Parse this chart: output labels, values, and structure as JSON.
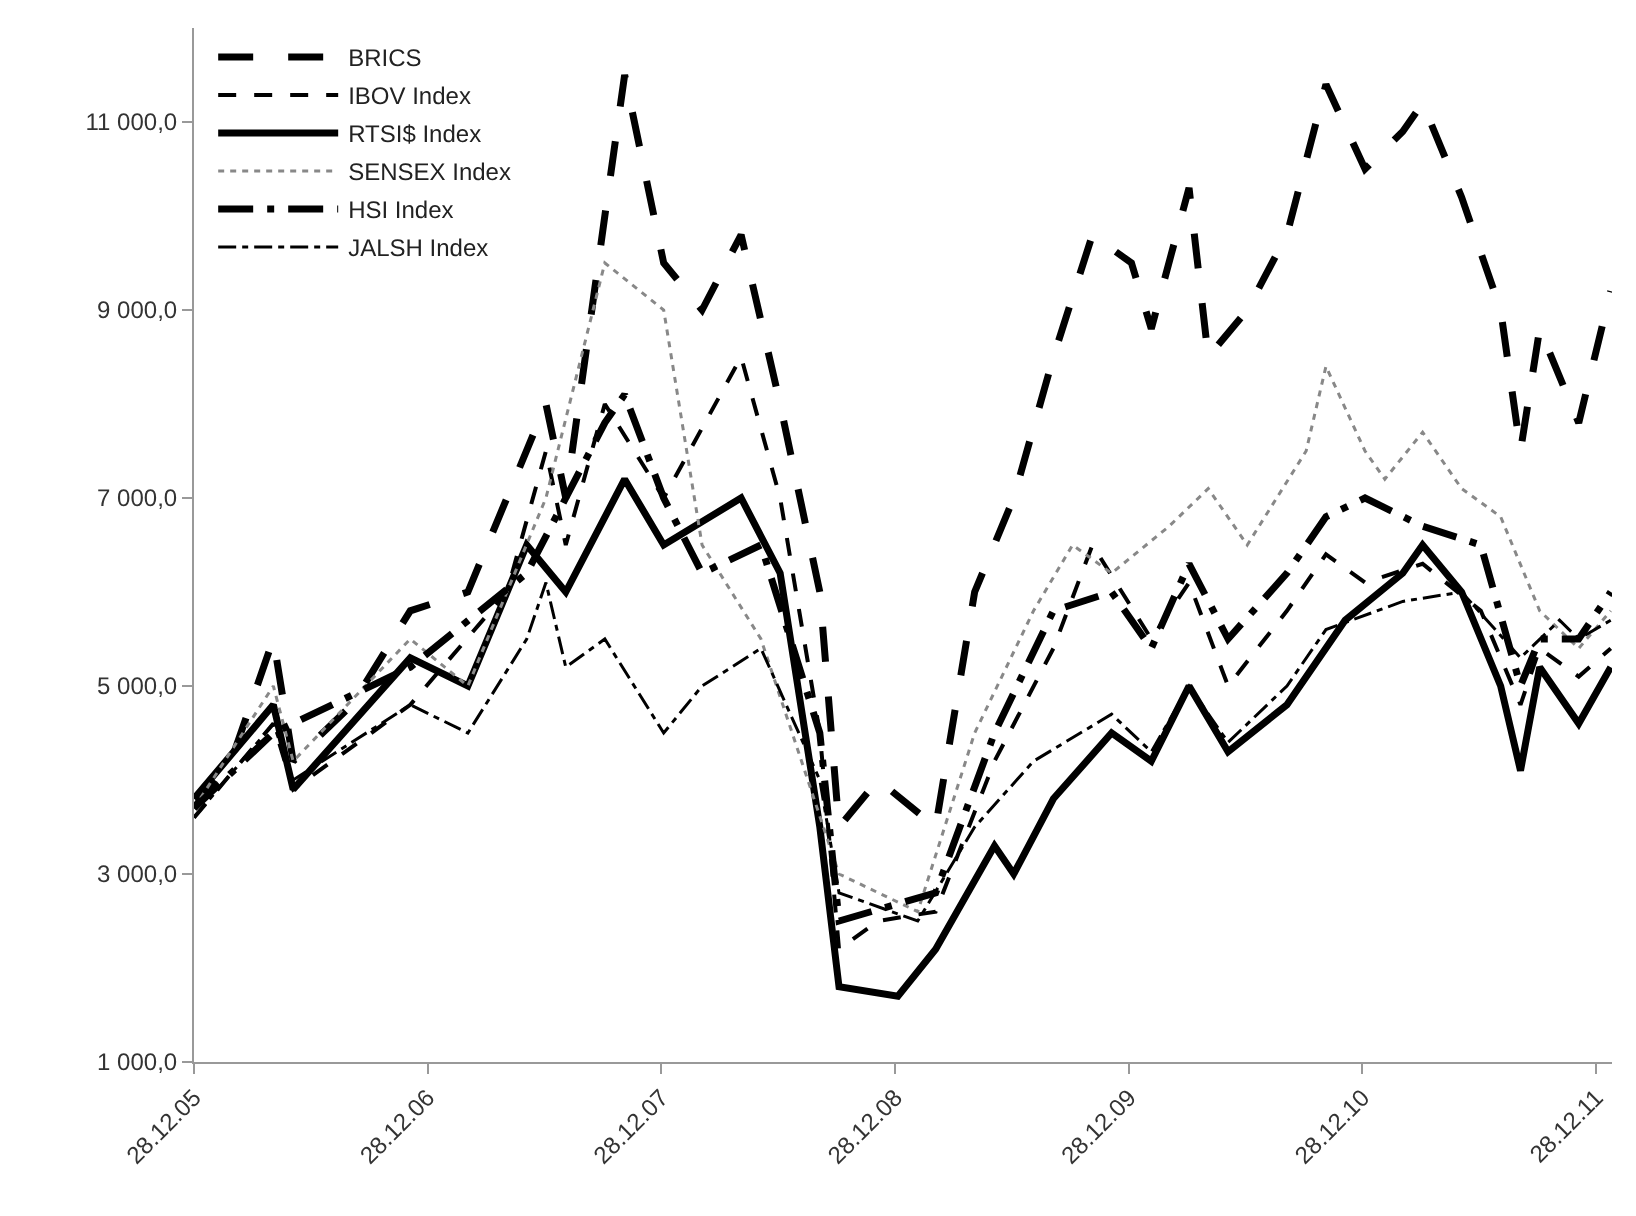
{
  "chart_data": {
    "type": "line",
    "xlim": [
      "2005-12-28",
      "2012-01-22"
    ],
    "ylim": [
      1000,
      12000
    ],
    "xticks": [
      {
        "value": "2005-12-28",
        "label": "28.12.05"
      },
      {
        "value": "2006-12-28",
        "label": "28.12.06"
      },
      {
        "value": "2007-12-28",
        "label": "28.12.07"
      },
      {
        "value": "2008-12-28",
        "label": "28.12.08"
      },
      {
        "value": "2009-12-28",
        "label": "28.12.09"
      },
      {
        "value": "2010-12-28",
        "label": "28.12.10"
      },
      {
        "value": "2011-12-28",
        "label": "28.12.11"
      }
    ],
    "yticks": [
      {
        "value": 1000,
        "label": "1 000,0"
      },
      {
        "value": 3000,
        "label": "3 000,0"
      },
      {
        "value": 5000,
        "label": "5 000,0"
      },
      {
        "value": 7000,
        "label": "7 000,0"
      },
      {
        "value": 9000,
        "label": "9 000,0"
      },
      {
        "value": 11000,
        "label": "11 000,0"
      }
    ],
    "legend": "top left",
    "marker": "none",
    "series": [
      {
        "name": "BRICS",
        "color": "#000000",
        "line_style": "longdash",
        "x": [
          "2005-12-28",
          "2006-03",
          "2006-05",
          "2006-06",
          "2006-09",
          "2006-12",
          "2007-03",
          "2007-05",
          "2007-07",
          "2007-08",
          "2007-10",
          "2007-11",
          "2008-01",
          "2008-03",
          "2008-05",
          "2008-07",
          "2008-09",
          "2008-10",
          "2008-12",
          "2009-03",
          "2009-05",
          "2009-07",
          "2009-09",
          "2009-11",
          "2010-01",
          "2010-02",
          "2010-04",
          "2010-05",
          "2010-07",
          "2010-09",
          "2010-11",
          "2011-01",
          "2011-03",
          "2011-04",
          "2011-06",
          "2011-08",
          "2011-09",
          "2011-10",
          "2011-12",
          "2012-01-20"
        ],
        "values": [
          3700,
          4300,
          5500,
          4200,
          4800,
          5800,
          6000,
          7000,
          8000,
          7000,
          10000,
          11500,
          9500,
          9000,
          9800,
          8000,
          6000,
          3500,
          4000,
          3500,
          6000,
          7000,
          8500,
          9800,
          9500,
          8800,
          10300,
          8500,
          9000,
          9800,
          11400,
          10500,
          10900,
          11200,
          10200,
          9000,
          7500,
          8800,
          7800,
          9200
        ]
      },
      {
        "name": "IBOV Index",
        "color": "#000000",
        "line_style": "dash",
        "x": [
          "2005-12-28",
          "2006-05",
          "2006-06",
          "2006-12",
          "2007-05",
          "2007-07",
          "2007-08",
          "2007-10",
          "2008-01",
          "2008-05",
          "2008-07",
          "2008-09",
          "2008-10",
          "2008-12",
          "2009-03",
          "2009-06",
          "2009-09",
          "2009-11",
          "2010-02",
          "2010-04",
          "2010-06",
          "2010-09",
          "2010-11",
          "2011-01",
          "2011-04",
          "2011-07",
          "2011-09",
          "2011-10",
          "2011-12",
          "2012-01-20"
        ],
        "values": [
          3600,
          4600,
          3900,
          4800,
          6000,
          7500,
          6500,
          8000,
          7000,
          8500,
          7000,
          4500,
          2200,
          2500,
          2600,
          4200,
          5400,
          6500,
          5500,
          6100,
          5000,
          5800,
          6400,
          6100,
          6300,
          5800,
          4800,
          5400,
          5100,
          5400
        ]
      },
      {
        "name": "RTSI$ Index",
        "color": "#000000",
        "line_style": "solid",
        "x": [
          "2005-12-28",
          "2006-05",
          "2006-06",
          "2006-12",
          "2007-03",
          "2007-06",
          "2007-08",
          "2007-11",
          "2008-01",
          "2008-05",
          "2008-07",
          "2008-09",
          "2008-10",
          "2009-01",
          "2009-03",
          "2009-06",
          "2009-07",
          "2009-09",
          "2009-12",
          "2010-02",
          "2010-04",
          "2010-06",
          "2010-09",
          "2010-12",
          "2011-03",
          "2011-04",
          "2011-06",
          "2011-08",
          "2011-09",
          "2011-10",
          "2011-12",
          "2012-01-20"
        ],
        "values": [
          3800,
          4800,
          3900,
          5300,
          5000,
          6500,
          6000,
          7200,
          6500,
          7000,
          6200,
          3500,
          1800,
          1700,
          2200,
          3300,
          3000,
          3800,
          4500,
          4200,
          5000,
          4300,
          4800,
          5700,
          6200,
          6500,
          6000,
          5000,
          4100,
          5200,
          4600,
          5200
        ]
      },
      {
        "name": "SENSEX Index",
        "color": "#888888",
        "line_style": "dot",
        "x": [
          "2005-12-28",
          "2006-05",
          "2006-06",
          "2006-12",
          "2007-03",
          "2007-07",
          "2007-10",
          "2008-01",
          "2008-03",
          "2008-06",
          "2008-10",
          "2009-02",
          "2009-05",
          "2009-08",
          "2009-10",
          "2009-12",
          "2010-03",
          "2010-05",
          "2010-07",
          "2010-10",
          "2010-11",
          "2011-01",
          "2011-02",
          "2011-04",
          "2011-06",
          "2011-08",
          "2011-10",
          "2011-12",
          "2012-01-20"
        ],
        "values": [
          3700,
          5000,
          4200,
          5500,
          5000,
          7000,
          9500,
          9000,
          6500,
          5500,
          3000,
          2600,
          4500,
          5800,
          6500,
          6200,
          6700,
          7100,
          6500,
          7500,
          8400,
          7500,
          7200,
          7700,
          7100,
          6800,
          5800,
          5400,
          5800
        ]
      },
      {
        "name": "HSI Index",
        "color": "#000000",
        "line_style": "longdashdot",
        "x": [
          "2005-12-28",
          "2006-05",
          "2006-12",
          "2007-06",
          "2007-10",
          "2007-11",
          "2008-01",
          "2008-03",
          "2008-06",
          "2008-09",
          "2008-10",
          "2009-03",
          "2009-06",
          "2009-09",
          "2009-12",
          "2010-02",
          "2010-04",
          "2010-06",
          "2010-09",
          "2010-11",
          "2011-01",
          "2011-04",
          "2011-07",
          "2011-09",
          "2011-10",
          "2011-12",
          "2012-01-20"
        ],
        "values": [
          3700,
          4500,
          5200,
          6200,
          7800,
          8100,
          7000,
          6200,
          6500,
          4500,
          2500,
          2800,
          4500,
          5800,
          6000,
          5400,
          6300,
          5500,
          6200,
          6800,
          7000,
          6700,
          6500,
          5000,
          5500,
          5500,
          6000
        ]
      },
      {
        "name": "JALSH Index",
        "color": "#000000",
        "line_style": "dashdot",
        "x": [
          "2005-12-28",
          "2006-05",
          "2006-06",
          "2006-12",
          "2007-03",
          "2007-06",
          "2007-07",
          "2007-08",
          "2007-10",
          "2008-01",
          "2008-03",
          "2008-06",
          "2008-09",
          "2008-10",
          "2009-02",
          "2009-05",
          "2009-08",
          "2009-12",
          "2010-02",
          "2010-04",
          "2010-06",
          "2010-09",
          "2010-11",
          "2011-03",
          "2011-06",
          "2011-09",
          "2011-11",
          "2011-12",
          "2012-01-20"
        ],
        "values": [
          3600,
          4600,
          4000,
          4800,
          4500,
          5500,
          6100,
          5200,
          5500,
          4500,
          5000,
          5400,
          4000,
          2800,
          2500,
          3500,
          4200,
          4700,
          4300,
          5000,
          4400,
          5000,
          5600,
          5900,
          6000,
          5300,
          5700,
          5500,
          5700
        ]
      }
    ]
  }
}
